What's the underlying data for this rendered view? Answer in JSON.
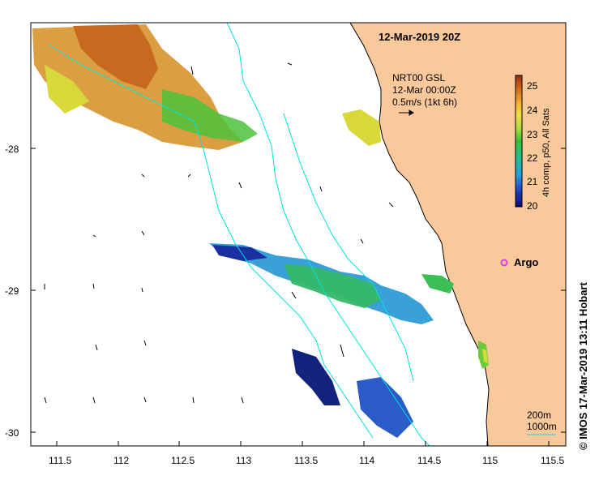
{
  "title": "12-Mar-2019 20Z",
  "legend": {
    "line1": "NRT00 GSL",
    "line2": "12-Mar 00:00Z",
    "line3": "0.5m/s (1kt 6h)"
  },
  "colorbar": {
    "label": "4h comp, p50, All Sats",
    "ticks": [
      "25",
      "24",
      "23",
      "22",
      "21",
      "20"
    ],
    "range": [
      20,
      25.5
    ]
  },
  "argo_label": "Argo",
  "depth_legend": {
    "line1": "200m",
    "line2": "1000m"
  },
  "credit": "© IMOS 17-Mar-2019 13:11 Hobart",
  "x_ticks": [
    "111.5",
    "112",
    "112.5",
    "113",
    "113.5",
    "114",
    "114.5",
    "115",
    "115.5"
  ],
  "y_ticks": [
    "-28",
    "-29",
    "-30"
  ],
  "colors": {
    "land": "#f9c89b",
    "coast": "#000000",
    "isobath": "#00e0e0",
    "argo": "#e040e0"
  }
}
